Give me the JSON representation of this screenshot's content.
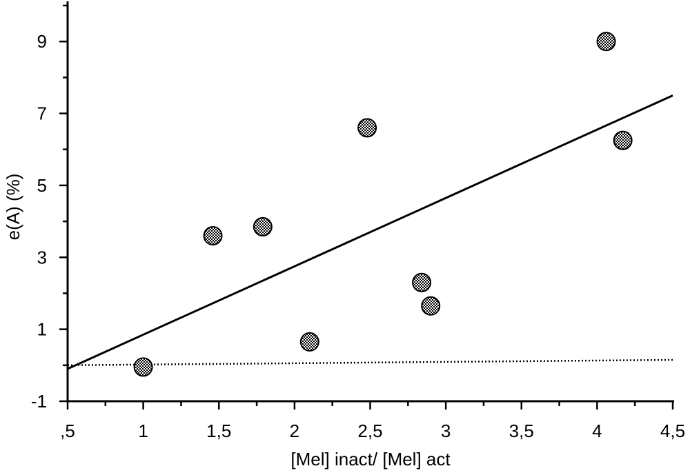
{
  "chart_data": {
    "type": "scatter",
    "title": "",
    "xlabel": "[Mel] inact/ [Mel] act",
    "ylabel": "e(A) (%)",
    "xlim": [
      0.5,
      4.5
    ],
    "ylim": [
      -1,
      10
    ],
    "x_ticks": [
      0.5,
      1,
      1.5,
      2,
      2.5,
      3,
      3.5,
      4,
      4.5
    ],
    "x_tick_labels": [
      ",5",
      "1",
      "1,5",
      "2",
      "2,5",
      "3",
      "3,5",
      "4",
      "4,5"
    ],
    "y_ticks": [
      -1,
      1,
      3,
      5,
      7,
      9
    ],
    "y_tick_labels": [
      "-1",
      "1",
      "3",
      "5",
      "7",
      "9"
    ],
    "grid": false,
    "legend": "none",
    "points": [
      {
        "x": 1.0,
        "y": -0.05
      },
      {
        "x": 1.46,
        "y": 3.6
      },
      {
        "x": 1.79,
        "y": 3.85
      },
      {
        "x": 2.1,
        "y": 0.65
      },
      {
        "x": 2.48,
        "y": 6.6
      },
      {
        "x": 2.84,
        "y": 2.3
      },
      {
        "x": 2.9,
        "y": 1.65
      },
      {
        "x": 4.06,
        "y": 9.0
      },
      {
        "x": 4.17,
        "y": 6.25
      }
    ],
    "fit_line": {
      "x": [
        0.5,
        4.5
      ],
      "y": [
        -0.1,
        7.5
      ]
    },
    "reference_line": {
      "x": [
        0.5,
        4.5
      ],
      "y": [
        0.0,
        0.15
      ],
      "style": "dotted"
    },
    "colors": {
      "marker": "#555555",
      "line": "#000000"
    }
  }
}
